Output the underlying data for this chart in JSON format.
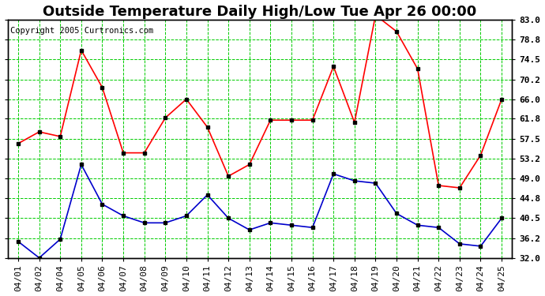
{
  "title": "Outside Temperature Daily High/Low Tue Apr 26 00:00",
  "copyright": "Copyright 2005 Curtronics.com",
  "x_labels": [
    "04/01",
    "04/02",
    "04/04",
    "04/05",
    "04/06",
    "04/07",
    "04/08",
    "04/09",
    "04/10",
    "04/11",
    "04/12",
    "04/13",
    "04/14",
    "04/15",
    "04/16",
    "04/17",
    "04/18",
    "04/19",
    "04/20",
    "04/21",
    "04/22",
    "04/23",
    "04/24",
    "04/25"
  ],
  "high_temps": [
    56.5,
    59.0,
    58.0,
    76.5,
    68.5,
    54.5,
    54.5,
    62.0,
    66.0,
    60.0,
    49.5,
    52.0,
    61.5,
    61.5,
    61.5,
    73.0,
    61.0,
    84.0,
    80.5,
    72.5,
    47.5,
    47.0,
    54.0,
    66.0
  ],
  "low_temps": [
    35.5,
    32.0,
    36.0,
    52.0,
    43.5,
    41.0,
    39.5,
    39.5,
    41.0,
    45.5,
    40.5,
    38.0,
    39.5,
    39.0,
    38.5,
    50.0,
    48.5,
    48.0,
    41.5,
    39.0,
    38.5,
    35.0,
    34.5,
    40.5
  ],
  "high_color": "#ff0000",
  "low_color": "#0000cc",
  "marker_color": "#000000",
  "bg_color": "#ffffff",
  "plot_bg_color": "#ffffff",
  "grid_color": "#00cc00",
  "border_color": "#000000",
  "yticks": [
    32.0,
    36.2,
    40.5,
    44.8,
    49.0,
    53.2,
    57.5,
    61.8,
    66.0,
    70.2,
    74.5,
    78.8,
    83.0
  ],
  "ylim": [
    32.0,
    83.0
  ],
  "title_fontsize": 13,
  "axis_fontsize": 8,
  "copyright_fontsize": 7.5,
  "marker_size": 3,
  "line_width": 1.2
}
